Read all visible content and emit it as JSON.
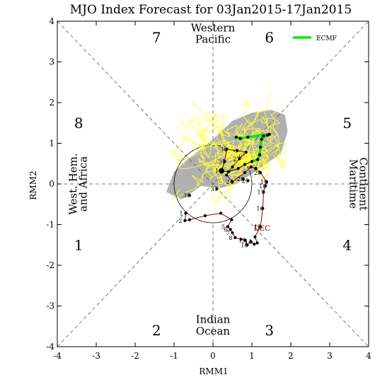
{
  "chart_data": {
    "type": "scatter",
    "title": "MJO Index Forecast for 03Jan2015-17Jan2015",
    "xlabel": "RMM1",
    "ylabel": "RMM2",
    "xlim": [
      -4,
      4
    ],
    "ylim": [
      -4,
      4
    ],
    "xticks": [
      "-4",
      "-3",
      "-2",
      "-1",
      "0",
      "1",
      "2",
      "3",
      "4"
    ],
    "yticks": [
      "-4",
      "-3",
      "-2",
      "-1",
      "0",
      "1",
      "2",
      "3",
      "4"
    ],
    "phases": [
      {
        "num": "1",
        "x": -3.45,
        "y": -1.5
      },
      {
        "num": "2",
        "x": -1.45,
        "y": -3.6
      },
      {
        "num": "3",
        "x": 1.45,
        "y": -3.6
      },
      {
        "num": "4",
        "x": 3.45,
        "y": -1.5
      },
      {
        "num": "5",
        "x": 3.45,
        "y": 1.5
      },
      {
        "num": "6",
        "x": 1.45,
        "y": 3.6
      },
      {
        "num": "7",
        "x": -1.45,
        "y": 3.6
      },
      {
        "num": "8",
        "x": -3.45,
        "y": 1.5
      }
    ],
    "regions": {
      "western_pacific": [
        "Western",
        "Pacific"
      ],
      "indian_ocean": [
        "Indian",
        "Ocean"
      ],
      "west_hem": [
        "West. Hem.",
        "and Africa"
      ],
      "maritime": [
        "Maritime",
        "Continent"
      ]
    },
    "legend": {
      "label": "ECMF",
      "color": "#00ee00",
      "position": "top-right"
    },
    "colors": {
      "observed_dec": "#8b0000",
      "observed_jan": "#000000",
      "ensemble": "#ffff33",
      "spread": "#b0b0b0",
      "mean": "#00ee00"
    },
    "month_label": {
      "text": "DEC",
      "x": 1.05,
      "y": -1.15
    },
    "observed_dec": [
      {
        "d": "1",
        "x": -0.7,
        "y": -0.72
      },
      {
        "d": "2",
        "x": -0.72,
        "y": -0.9
      },
      {
        "d": "",
        "x": -0.6,
        "y": -0.88
      },
      {
        "d": "",
        "x": -0.2,
        "y": -0.78
      },
      {
        "d": "",
        "x": 0.2,
        "y": -0.72
      },
      {
        "d": "",
        "x": 0.48,
        "y": -0.88
      },
      {
        "d": "5",
        "x": 0.38,
        "y": -1.05
      },
      {
        "d": "6",
        "x": 0.45,
        "y": -1.12
      },
      {
        "d": "7",
        "x": 0.5,
        "y": -1.2
      },
      {
        "d": "8",
        "x": 0.57,
        "y": -1.32
      },
      {
        "d": "",
        "x": 0.72,
        "y": -1.36
      },
      {
        "d": "13",
        "x": 0.82,
        "y": -1.38
      },
      {
        "d": "10",
        "x": 0.88,
        "y": -1.5
      },
      {
        "d": "14",
        "x": 0.98,
        "y": -1.42
      },
      {
        "d": "",
        "x": 1.06,
        "y": -1.48
      },
      {
        "d": "",
        "x": 1.14,
        "y": -1.45
      },
      {
        "d": "",
        "x": 1.08,
        "y": -1.3
      },
      {
        "d": "15",
        "x": 1.22,
        "y": -1.05
      },
      {
        "d": "16",
        "x": 1.28,
        "y": -0.6
      },
      {
        "d": "17",
        "x": 1.3,
        "y": -0.2
      },
      {
        "d": "18",
        "x": 1.35,
        "y": -0.05
      },
      {
        "d": "19",
        "x": 1.38,
        "y": 0.05
      },
      {
        "d": "20",
        "x": 1.22,
        "y": 0.28
      },
      {
        "d": "",
        "x": 1.1,
        "y": 0.38
      },
      {
        "d": "",
        "x": 0.98,
        "y": 0.42
      },
      {
        "d": "",
        "x": 0.82,
        "y": 0.28
      },
      {
        "d": "24",
        "x": 0.5,
        "y": 0.05
      },
      {
        "d": "",
        "x": 0.35,
        "y": 0.22
      },
      {
        "d": "",
        "x": 0.5,
        "y": 0.42
      },
      {
        "d": "27",
        "x": 0.68,
        "y": 0.62
      },
      {
        "d": "",
        "x": 0.85,
        "y": 0.78
      },
      {
        "d": "",
        "x": 0.62,
        "y": 0.82
      },
      {
        "d": "30",
        "x": 0.35,
        "y": 0.85
      },
      {
        "d": "31",
        "x": 0.3,
        "y": 0.55
      }
    ],
    "observed_jan": [
      {
        "d": "",
        "x": 0.3,
        "y": 0.55
      },
      {
        "d": "1",
        "x": 0.22,
        "y": 0.32
      },
      {
        "d": "",
        "x": 0.4,
        "y": 0.3
      },
      {
        "d": "",
        "x": 0.65,
        "y": 0.38
      },
      {
        "d": "",
        "x": 0.82,
        "y": 0.48
      },
      {
        "d": "",
        "x": 1.0,
        "y": 0.55
      }
    ],
    "observed_late": [
      {
        "d": "28",
        "x": 0.78,
        "y": 0.12
      },
      {
        "d": "29",
        "x": 0.9,
        "y": 0.08
      },
      {
        "d": "30",
        "x": -0.6,
        "y": -0.28
      },
      {
        "d": "31",
        "x": 0.1,
        "y": -0.12
      }
    ],
    "ensemble_mean": [
      {
        "x": 1.0,
        "y": 0.55
      },
      {
        "x": 1.15,
        "y": 0.6
      },
      {
        "x": 1.2,
        "y": 0.72
      },
      {
        "x": 1.22,
        "y": 0.9
      },
      {
        "x": 1.25,
        "y": 1.1
      },
      {
        "x": 1.3,
        "y": 1.18
      },
      {
        "x": 1.4,
        "y": 1.2
      },
      {
        "x": 1.45,
        "y": 1.22
      },
      {
        "x": 0.9,
        "y": 1.15
      },
      {
        "x": 0.7,
        "y": 1.12
      },
      {
        "x": 0.6,
        "y": 1.15
      }
    ],
    "spread_polygon": [
      {
        "x": -0.3,
        "y": 0.85
      },
      {
        "x": 0.0,
        "y": 1.1
      },
      {
        "x": 0.5,
        "y": 1.55
      },
      {
        "x": 1.0,
        "y": 1.75
      },
      {
        "x": 1.5,
        "y": 1.82
      },
      {
        "x": 1.85,
        "y": 1.7
      },
      {
        "x": 1.92,
        "y": 1.3
      },
      {
        "x": 1.75,
        "y": 0.75
      },
      {
        "x": 1.45,
        "y": 0.55
      },
      {
        "x": 1.0,
        "y": 0.25
      },
      {
        "x": 0.6,
        "y": 0.0
      },
      {
        "x": 0.2,
        "y": -0.1
      },
      {
        "x": -0.3,
        "y": -0.05
      },
      {
        "x": -0.8,
        "y": -0.38
      },
      {
        "x": -1.2,
        "y": -0.2
      },
      {
        "x": -1.0,
        "y": 0.3
      },
      {
        "x": -0.6,
        "y": 0.65
      }
    ]
  }
}
